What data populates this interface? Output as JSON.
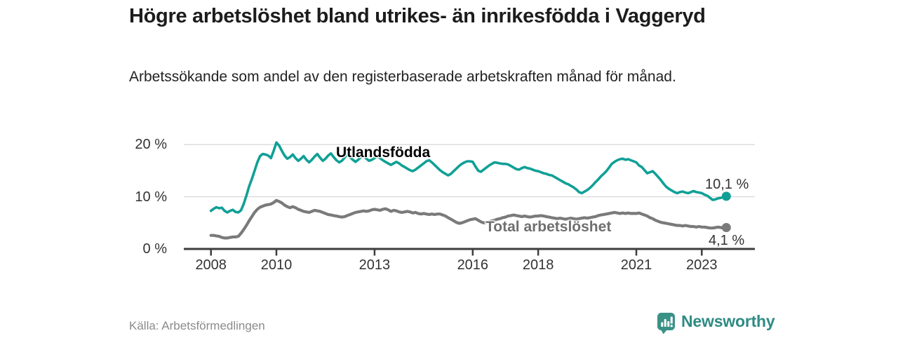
{
  "header": {
    "title": "Högre arbetslöshet bland utrikes- än inrikesfödda i Vaggeryd",
    "subtitle": "Arbetssökande som andel av den registerbaserade arbetskraften månad för månad."
  },
  "footer": {
    "source": "Källa: Arbetsförmedlingen",
    "brand_name": "Newsworthy"
  },
  "colors": {
    "foreign_born_line": "#10a096",
    "total_line": "#7a7a7a",
    "axis": "#3d3d3d",
    "gridline": "#dadada",
    "text_dark": "#333333",
    "brand_teal": "#2e8b84",
    "logo_bg": "#3a9186"
  },
  "chart_data": {
    "type": "line",
    "title": "Högre arbetslöshet bland utrikes- än inrikesfödda i Vaggeryd",
    "xlabel": "",
    "ylabel": "",
    "unit": "%",
    "x_start_year": 2008,
    "x_months_per_point": 1,
    "xlim": [
      2007.2,
      2024.6
    ],
    "ylim": [
      0,
      22
    ],
    "grid": "horizontal-only",
    "legend_position": "inline-labels",
    "yticks": [
      {
        "value": 0,
        "label": "0 %"
      },
      {
        "value": 10,
        "label": "10 %"
      },
      {
        "value": 20,
        "label": "20 %"
      }
    ],
    "xticks": [
      {
        "value": 2008,
        "label": "2008"
      },
      {
        "value": 2010,
        "label": "2010"
      },
      {
        "value": 2013,
        "label": "2013"
      },
      {
        "value": 2016,
        "label": "2016"
      },
      {
        "value": 2018,
        "label": "2018"
      },
      {
        "value": 2021,
        "label": "2021"
      },
      {
        "value": 2023,
        "label": "2023"
      }
    ],
    "series": [
      {
        "name": "utlandsfodda",
        "label": "Utlandsfödda",
        "color": "#10a096",
        "end_label": "10,1 %",
        "end_value": 10.1,
        "values": [
          7.3,
          7.7,
          8.0,
          7.8,
          7.9,
          7.3,
          7.0,
          7.3,
          7.5,
          7.1,
          7.0,
          7.4,
          8.6,
          10.2,
          12.0,
          13.4,
          15.0,
          16.6,
          17.8,
          18.2,
          18.1,
          17.9,
          17.4,
          18.8,
          20.4,
          19.8,
          18.8,
          17.9,
          17.3,
          17.6,
          18.1,
          17.4,
          16.9,
          17.3,
          17.8,
          17.1,
          16.6,
          17.1,
          17.7,
          18.2,
          17.5,
          16.9,
          17.3,
          17.9,
          18.3,
          17.6,
          17.0,
          16.6,
          16.9,
          17.5,
          18.1,
          17.6,
          17.1,
          16.7,
          17.1,
          17.6,
          17.9,
          17.3,
          16.9,
          17.1,
          17.4,
          17.8,
          17.4,
          17.0,
          16.7,
          16.4,
          16.1,
          16.4,
          16.7,
          16.4,
          16.0,
          15.7,
          15.4,
          15.1,
          14.9,
          15.2,
          15.6,
          16.0,
          16.4,
          16.8,
          17.0,
          16.6,
          16.1,
          15.6,
          15.1,
          14.7,
          14.4,
          14.1,
          14.4,
          14.9,
          15.4,
          15.9,
          16.3,
          16.6,
          16.8,
          16.8,
          16.7,
          15.8,
          15.0,
          14.8,
          15.2,
          15.6,
          16.0,
          16.3,
          16.6,
          16.5,
          16.4,
          16.3,
          16.3,
          16.2,
          15.9,
          15.6,
          15.3,
          15.2,
          15.5,
          15.7,
          15.5,
          15.4,
          15.2,
          15.0,
          14.9,
          14.7,
          14.5,
          14.4,
          14.2,
          14.1,
          13.8,
          13.5,
          13.2,
          12.9,
          12.6,
          12.4,
          12.1,
          11.8,
          11.4,
          10.9,
          10.7,
          11.0,
          11.3,
          11.7,
          12.2,
          12.8,
          13.3,
          13.9,
          14.4,
          14.9,
          15.6,
          16.3,
          16.7,
          17.0,
          17.2,
          17.3,
          17.1,
          17.2,
          17.0,
          16.8,
          16.6,
          16.0,
          15.7,
          15.1,
          14.5,
          14.7,
          14.9,
          14.4,
          13.8,
          13.2,
          12.5,
          11.9,
          11.5,
          11.2,
          10.9,
          10.7,
          10.9,
          11.0,
          10.8,
          10.7,
          10.9,
          11.1,
          10.9,
          10.8,
          10.7,
          10.4,
          10.2,
          9.8,
          9.4,
          9.5,
          9.7,
          9.8,
          9.9,
          10.1
        ]
      },
      {
        "name": "total-arbetsloshet",
        "label": "Total arbetslöshet",
        "color": "#7a7a7a",
        "end_label": "4,1 %",
        "end_value": 4.1,
        "values": [
          2.6,
          2.6,
          2.5,
          2.4,
          2.2,
          2.1,
          2.1,
          2.2,
          2.3,
          2.3,
          2.4,
          3.0,
          3.7,
          4.5,
          5.4,
          6.2,
          7.0,
          7.6,
          8.0,
          8.2,
          8.4,
          8.5,
          8.6,
          8.9,
          9.3,
          9.1,
          8.8,
          8.4,
          8.1,
          7.9,
          8.1,
          7.9,
          7.6,
          7.4,
          7.2,
          7.1,
          7.0,
          7.2,
          7.4,
          7.3,
          7.2,
          7.0,
          6.8,
          6.6,
          6.5,
          6.4,
          6.3,
          6.2,
          6.1,
          6.2,
          6.4,
          6.6,
          6.8,
          7.0,
          7.1,
          7.2,
          7.3,
          7.2,
          7.3,
          7.5,
          7.6,
          7.5,
          7.4,
          7.6,
          7.7,
          7.5,
          7.2,
          7.4,
          7.3,
          7.1,
          7.0,
          7.1,
          7.2,
          7.1,
          6.9,
          7.0,
          6.8,
          6.7,
          6.8,
          6.7,
          6.6,
          6.7,
          6.6,
          6.7,
          6.7,
          6.5,
          6.3,
          6.0,
          5.7,
          5.4,
          5.1,
          4.9,
          5.0,
          5.2,
          5.4,
          5.6,
          5.7,
          5.8,
          5.5,
          5.2,
          5.0,
          5.1,
          5.2,
          5.4,
          5.5,
          5.7,
          5.8,
          6.0,
          6.1,
          6.3,
          6.4,
          6.5,
          6.4,
          6.3,
          6.2,
          6.3,
          6.2,
          6.1,
          6.2,
          6.3,
          6.3,
          6.4,
          6.3,
          6.2,
          6.1,
          6.0,
          5.9,
          5.8,
          5.9,
          5.8,
          5.7,
          5.8,
          5.9,
          5.8,
          5.7,
          5.8,
          5.9,
          6.0,
          5.9,
          6.0,
          6.1,
          6.2,
          6.4,
          6.5,
          6.6,
          6.7,
          6.8,
          6.9,
          7.0,
          6.9,
          6.8,
          6.9,
          6.8,
          6.9,
          6.8,
          6.8,
          6.8,
          6.9,
          6.7,
          6.5,
          6.3,
          6.0,
          5.8,
          5.5,
          5.3,
          5.1,
          5.0,
          4.9,
          4.8,
          4.7,
          4.6,
          4.5,
          4.5,
          4.4,
          4.5,
          4.4,
          4.3,
          4.3,
          4.2,
          4.3,
          4.2,
          4.2,
          4.1,
          4.0,
          4.0,
          4.1,
          4.2,
          4.1,
          4.0,
          4.1
        ]
      }
    ]
  }
}
